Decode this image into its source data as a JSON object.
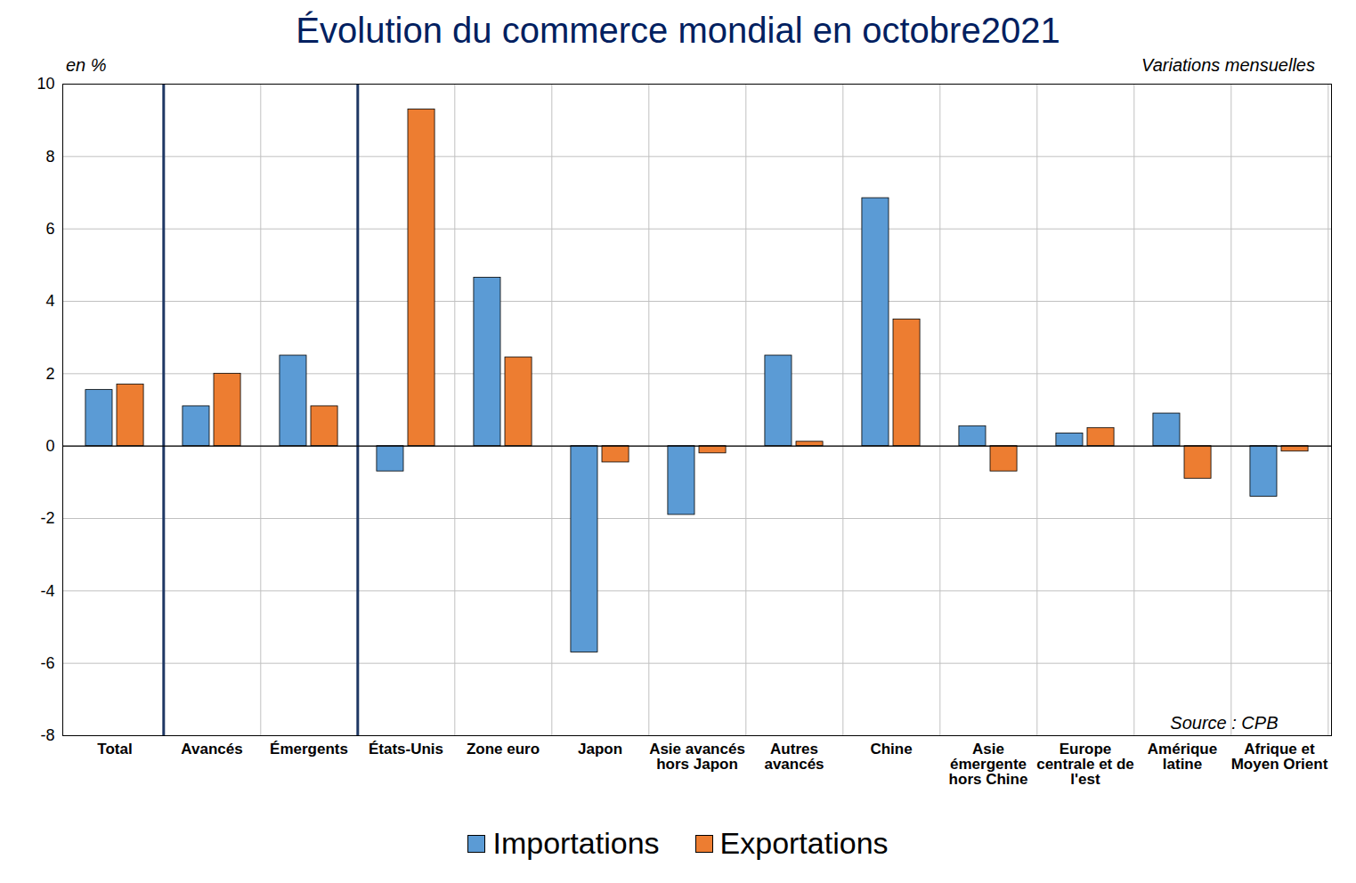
{
  "chart_data": {
    "type": "bar",
    "title": "Évolution du commerce mondial en octobre2021",
    "subtitle": "Variations mensuelles",
    "ylabel": "en %",
    "annotations": [
      "Source : CPB"
    ],
    "categories": [
      "Total",
      "Avancés",
      "Émergents",
      "États-Unis",
      "Zone euro",
      "Japon",
      "Asie avancés hors Japon",
      "Autres avancés",
      "Chine",
      "Asie émergente hors Chine",
      "Europe centrale et de l'est",
      "Amérique latine",
      "Afrique et Moyen Orient"
    ],
    "series": [
      {
        "name": "Importations",
        "color": "#5b9bd5",
        "values": [
          1.55,
          1.1,
          2.5,
          -0.7,
          4.65,
          -5.7,
          -1.9,
          2.5,
          6.85,
          0.55,
          0.35,
          0.9,
          -1.4
        ]
      },
      {
        "name": "Exportations",
        "color": "#ed7d31",
        "values": [
          1.7,
          2.0,
          1.1,
          9.3,
          2.45,
          -0.45,
          -0.2,
          0.12,
          3.5,
          -0.7,
          0.5,
          -0.9,
          -0.15
        ]
      }
    ],
    "ylim": [
      -8,
      10
    ],
    "yticks": [
      -8,
      -6,
      -4,
      -2,
      0,
      2,
      4,
      6,
      8,
      10
    ],
    "grid": true,
    "legend": "bottom"
  }
}
